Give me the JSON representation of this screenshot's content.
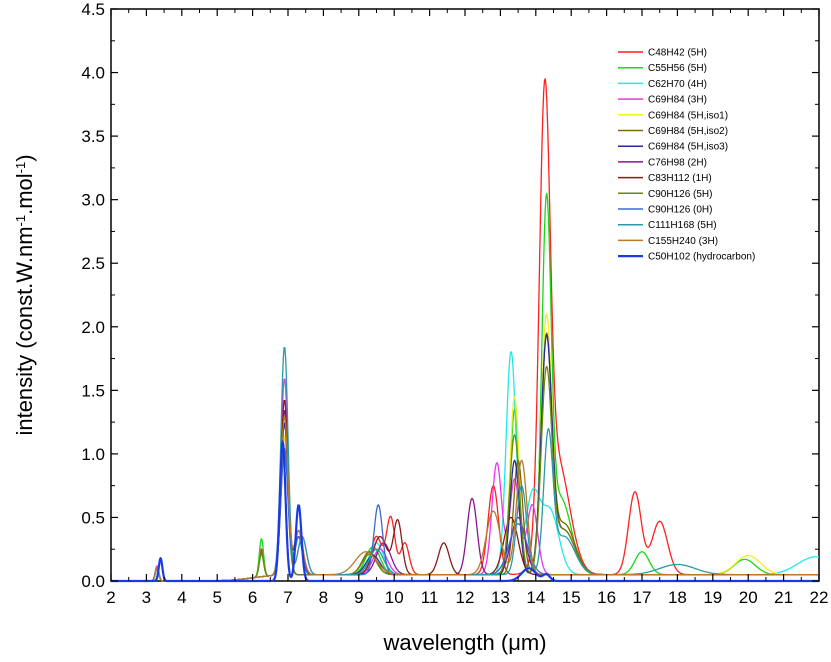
{
  "chart_data": {
    "type": "line",
    "title": "",
    "xlabel": "wavelength (μm)",
    "ylabel_parts": [
      "intensity (const.W.nm",
      "-1",
      ".mol",
      "-1",
      ")"
    ],
    "xlim": [
      2,
      22
    ],
    "ylim": [
      0,
      4.5
    ],
    "xticks": [
      "2",
      "3",
      "4",
      "5",
      "6",
      "7",
      "8",
      "9",
      "10",
      "11",
      "12",
      "13",
      "14",
      "15",
      "16",
      "17",
      "18",
      "19",
      "20",
      "21",
      "22"
    ],
    "yticks": [
      "0.0",
      "0.5",
      "1.0",
      "1.5",
      "2.0",
      "2.5",
      "3.0",
      "3.5",
      "4.0",
      "4.5"
    ],
    "grid": false,
    "legend_position": "top-right",
    "series": [
      {
        "name": "C48H42 (5H)",
        "color": "#ff2020",
        "base": 0.02,
        "peaks": [
          [
            3.3,
            0.1,
            0.05
          ],
          [
            6.25,
            0.22,
            0.06
          ],
          [
            6.9,
            1.1,
            0.1
          ],
          [
            7.3,
            0.35,
            0.1
          ],
          [
            9.5,
            0.3,
            0.15
          ],
          [
            9.9,
            0.45,
            0.12
          ],
          [
            10.3,
            0.25,
            0.12
          ],
          [
            12.8,
            0.7,
            0.15
          ],
          [
            14.25,
            3.35,
            0.15
          ],
          [
            14.6,
            0.9,
            0.35
          ],
          [
            16.8,
            0.65,
            0.18
          ],
          [
            17.5,
            0.42,
            0.22
          ]
        ]
      },
      {
        "name": "C55H56 (5H)",
        "color": "#18d818",
        "base": 0.02,
        "peaks": [
          [
            3.3,
            0.1,
            0.05
          ],
          [
            6.25,
            0.3,
            0.06
          ],
          [
            6.9,
            1.2,
            0.1
          ],
          [
            7.3,
            0.3,
            0.1
          ],
          [
            9.4,
            0.22,
            0.2
          ],
          [
            13.4,
            1.3,
            0.12
          ],
          [
            14.3,
            2.75,
            0.13
          ],
          [
            14.7,
            0.6,
            0.3
          ],
          [
            17.0,
            0.18,
            0.2
          ],
          [
            19.9,
            0.12,
            0.3
          ]
        ]
      },
      {
        "name": "C62H70 (4H)",
        "color": "#22e8e8",
        "base": 0.02,
        "peaks": [
          [
            3.3,
            0.12,
            0.05
          ],
          [
            6.25,
            0.2,
            0.06
          ],
          [
            6.9,
            1.3,
            0.1
          ],
          [
            9.5,
            0.25,
            0.2
          ],
          [
            13.3,
            1.75,
            0.14
          ],
          [
            13.9,
            0.6,
            0.2
          ],
          [
            14.4,
            0.5,
            0.25
          ],
          [
            21.9,
            0.14,
            0.5
          ]
        ]
      },
      {
        "name": "C69H84 (3H)",
        "color": "#ee33ee",
        "base": 0.02,
        "peaks": [
          [
            3.3,
            0.12,
            0.05
          ],
          [
            6.9,
            1.55,
            0.1
          ],
          [
            7.4,
            0.3,
            0.12
          ],
          [
            9.6,
            0.2,
            0.2
          ],
          [
            12.9,
            0.88,
            0.14
          ],
          [
            13.4,
            0.75,
            0.14
          ],
          [
            13.9,
            0.55,
            0.15
          ]
        ]
      },
      {
        "name": "C69H84 (5H,iso1)",
        "color": "#f0f020",
        "base": 0.02,
        "peaks": [
          [
            3.3,
            0.1,
            0.05
          ],
          [
            6.25,
            0.2,
            0.06
          ],
          [
            6.9,
            1.1,
            0.1
          ],
          [
            9.3,
            0.18,
            0.2
          ],
          [
            13.4,
            1.4,
            0.13
          ],
          [
            14.3,
            1.95,
            0.15
          ],
          [
            14.8,
            0.4,
            0.3
          ],
          [
            20.0,
            0.15,
            0.35
          ]
        ]
      },
      {
        "name": "C69H84 (5H,iso2)",
        "color": "#7a6a10",
        "base": 0.02,
        "peaks": [
          [
            3.3,
            0.1,
            0.05
          ],
          [
            6.25,
            0.2,
            0.06
          ],
          [
            6.9,
            1.2,
            0.1
          ],
          [
            9.3,
            0.18,
            0.2
          ],
          [
            13.5,
            0.9,
            0.13
          ],
          [
            14.3,
            1.8,
            0.15
          ],
          [
            14.8,
            0.4,
            0.3
          ]
        ]
      },
      {
        "name": "C69H84 (5H,iso3)",
        "color": "#2a2a9a",
        "base": 0.02,
        "peaks": [
          [
            3.3,
            0.1,
            0.05
          ],
          [
            6.9,
            1.2,
            0.1
          ],
          [
            9.4,
            0.15,
            0.2
          ],
          [
            13.4,
            0.9,
            0.13
          ],
          [
            14.3,
            1.8,
            0.15
          ],
          [
            14.8,
            0.35,
            0.3
          ]
        ]
      },
      {
        "name": "C76H98 (2H)",
        "color": "#8a178a",
        "base": 0.02,
        "peaks": [
          [
            3.3,
            0.1,
            0.05
          ],
          [
            6.9,
            1.3,
            0.1
          ],
          [
            7.3,
            0.3,
            0.12
          ],
          [
            9.7,
            0.25,
            0.2
          ],
          [
            12.2,
            0.6,
            0.14
          ],
          [
            13.5,
            0.45,
            0.2
          ]
        ]
      },
      {
        "name": "C83H112 (1H)",
        "color": "#8a1a1a",
        "base": 0.02,
        "peaks": [
          [
            3.3,
            0.1,
            0.05
          ],
          [
            6.9,
            1.38,
            0.1
          ],
          [
            7.3,
            0.3,
            0.12
          ],
          [
            9.6,
            0.3,
            0.2
          ],
          [
            10.1,
            0.42,
            0.12
          ],
          [
            11.4,
            0.25,
            0.15
          ],
          [
            13.3,
            0.45,
            0.2
          ]
        ]
      },
      {
        "name": "C90H126 (5H)",
        "color": "#6a8a10",
        "base": 0.02,
        "peaks": [
          [
            3.3,
            0.1,
            0.05
          ],
          [
            6.25,
            0.18,
            0.06
          ],
          [
            6.9,
            1.0,
            0.1
          ],
          [
            9.3,
            0.16,
            0.2
          ],
          [
            13.4,
            1.1,
            0.14
          ],
          [
            14.3,
            1.55,
            0.15
          ],
          [
            14.8,
            0.35,
            0.3
          ]
        ]
      },
      {
        "name": "C90H126 (0H)",
        "color": "#3a6ad0",
        "base": 0.02,
        "peaks": [
          [
            3.3,
            0.1,
            0.05
          ],
          [
            6.9,
            1.0,
            0.1
          ],
          [
            7.3,
            0.3,
            0.1
          ],
          [
            9.55,
            0.55,
            0.12
          ],
          [
            13.5,
            0.4,
            0.25
          ]
        ]
      },
      {
        "name": "C111H168 (5H)",
        "color": "#2a9aaa",
        "base": 0.02,
        "peaks": [
          [
            3.3,
            0.1,
            0.05
          ],
          [
            6.9,
            1.8,
            0.1
          ],
          [
            7.4,
            0.3,
            0.12
          ],
          [
            9.5,
            0.2,
            0.2
          ],
          [
            13.6,
            0.7,
            0.14
          ],
          [
            14.35,
            1.05,
            0.13
          ],
          [
            14.8,
            0.3,
            0.3
          ],
          [
            18.0,
            0.08,
            0.5
          ]
        ]
      },
      {
        "name": "C155H240 (3H)",
        "color": "#b87a2a",
        "base": 0.02,
        "peaks": [
          [
            3.3,
            0.1,
            0.05
          ],
          [
            6.9,
            1.25,
            0.1
          ],
          [
            7.3,
            0.35,
            0.12
          ],
          [
            9.2,
            0.18,
            0.3
          ],
          [
            12.8,
            0.5,
            0.2
          ],
          [
            13.6,
            0.9,
            0.15
          ]
        ]
      },
      {
        "name": "C50H102 (hydrocarbon)",
        "color": "#1a3ae8",
        "base": 0.0,
        "peaks": [
          [
            3.4,
            0.18,
            0.05
          ],
          [
            6.85,
            1.1,
            0.08
          ],
          [
            7.3,
            0.6,
            0.08
          ],
          [
            13.8,
            0.1,
            0.2
          ],
          [
            14.3,
            0.05,
            0.1
          ]
        ]
      }
    ]
  }
}
